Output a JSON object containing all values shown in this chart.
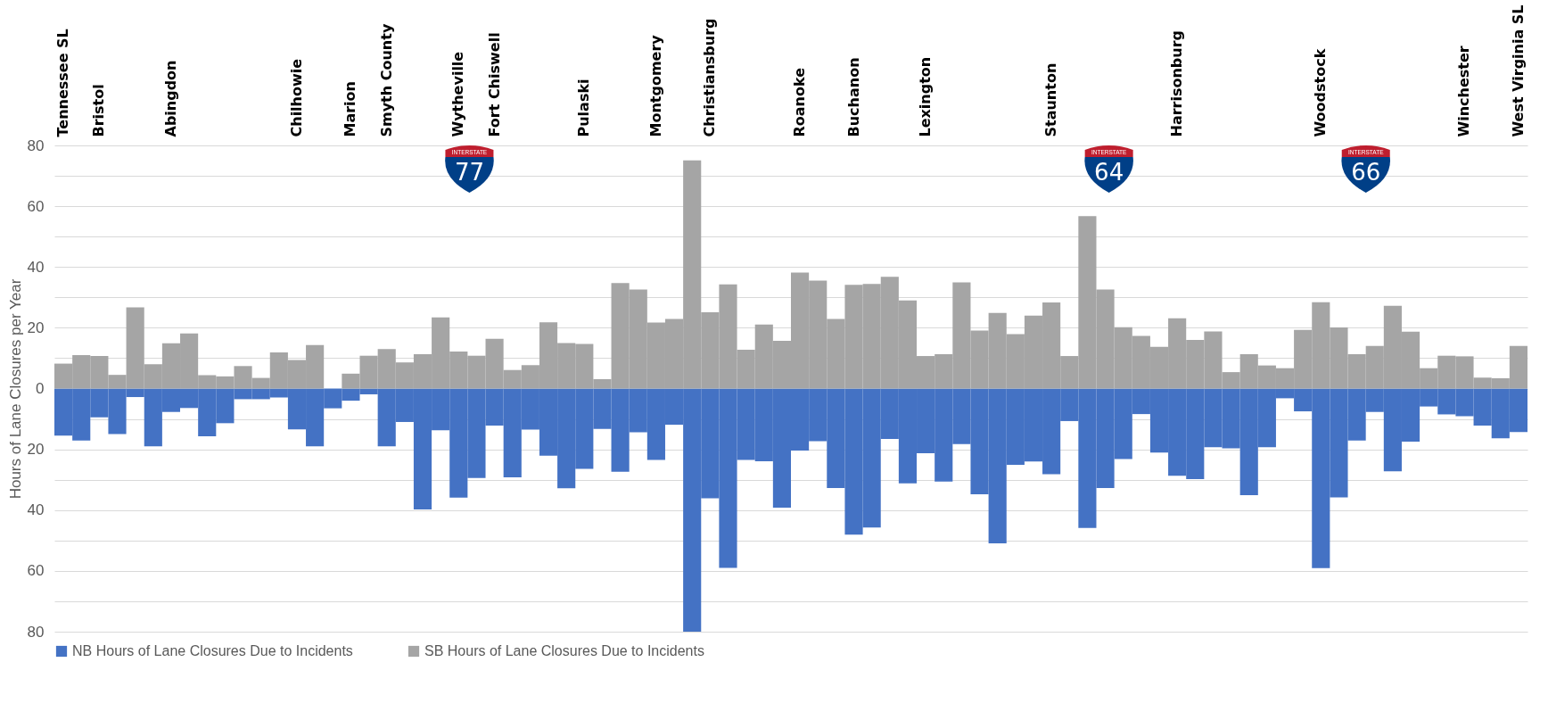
{
  "chart_data": {
    "type": "bar",
    "ylabel": "Hours of Lane Closures per Year",
    "categories": [
      "Tennessee SL",
      null,
      "Bristol",
      null,
      null,
      null,
      "Abingdon",
      null,
      null,
      null,
      null,
      null,
      null,
      "Chilhowie",
      null,
      null,
      "Marion",
      null,
      "Smyth County",
      null,
      null,
      null,
      "Wytheville",
      null,
      "Fort Chiswell",
      null,
      null,
      null,
      null,
      "Pulaski",
      null,
      null,
      null,
      "Montgomery",
      null,
      null,
      "Christiansburg",
      null,
      null,
      null,
      null,
      "Roanoke",
      null,
      null,
      "Buchanon",
      null,
      null,
      null,
      "Lexington",
      null,
      null,
      null,
      null,
      null,
      null,
      "Staunton",
      null,
      null,
      null,
      null,
      null,
      null,
      "Harrisonburg",
      null,
      null,
      null,
      null,
      null,
      null,
      null,
      "Woodstock",
      null,
      null,
      null,
      null,
      null,
      null,
      null,
      "Winchester",
      null,
      null,
      "West Virginia SL"
    ],
    "series": [
      {
        "name": "NB Hours of Lane Closures Due to Incidents",
        "color": "#4472c4",
        "values": [
          -15.5,
          -17.1,
          -9.5,
          -15.0,
          -2.8,
          -19.0,
          -7.7,
          -6.4,
          -15.7,
          -11.4,
          -3.5,
          -3.5,
          -2.9,
          -13.4,
          -19.0,
          -6.5,
          -4.0,
          -1.9,
          -19.0,
          -11.0,
          -39.8,
          -13.7,
          -35.9,
          -29.4,
          -12.2,
          -29.2,
          -13.5,
          -22.1,
          -32.8,
          -26.4,
          -13.3,
          -27.4,
          -14.4,
          -23.5,
          -11.9,
          -80,
          -36.1,
          -59.0,
          -23.5,
          -23.9,
          -39.2,
          -20.4,
          -17.3,
          -32.7,
          -48.1,
          -45.7,
          -16.6,
          -31.2,
          -21.3,
          -30.6,
          -18.3,
          -34.8,
          -50.9,
          -25.1,
          -24.0,
          -28.2,
          -10.7,
          -45.9,
          -32.7,
          -23.2,
          -8.4,
          -21.1,
          -28.7,
          -29.8,
          -19.3,
          -19.7,
          -35.1,
          -19.3,
          -3.2,
          -7.5,
          -59.1,
          -35.8,
          -17.1,
          -7.7,
          -27.2,
          -17.5,
          -5.9,
          -8.5,
          -9.1,
          -12.2,
          -16.4,
          -14.3
        ]
      },
      {
        "name": "SB Hours of Lane Closures Due to Incidents",
        "color": "#a5a5a5",
        "values": [
          8.2,
          11.0,
          10.7,
          4.5,
          26.7,
          8.0,
          14.9,
          18.1,
          4.4,
          4.0,
          7.4,
          3.5,
          11.9,
          9.4,
          14.3,
          0,
          4.9,
          10.8,
          13.0,
          8.6,
          11.3,
          23.4,
          12.2,
          10.8,
          16.4,
          6.1,
          7.7,
          21.8,
          15.0,
          14.7,
          3.1,
          34.7,
          32.6,
          21.7,
          22.9,
          75.1,
          25.1,
          34.3,
          12.8,
          21.1,
          15.7,
          38.2,
          35.5,
          22.9,
          34.1,
          34.4,
          36.8,
          29.0,
          10.7,
          11.3,
          34.9,
          19.1,
          24.9,
          17.9,
          24.0,
          28.3,
          10.7,
          56.7,
          32.6,
          20.2,
          17.3,
          13.7,
          23.1,
          16.0,
          18.8,
          5.4,
          11.3,
          7.6,
          6.7,
          19.3,
          28.4,
          20.1,
          11.3,
          14.0,
          27.2,
          18.7,
          6.7,
          10.8,
          10.6,
          3.6,
          3.4,
          14.0
        ]
      }
    ],
    "ylim": [
      -80,
      80
    ],
    "yticks": [
      {
        "value": -80,
        "label": "80"
      },
      {
        "value": -70,
        "label": null
      },
      {
        "value": -60,
        "label": "60"
      },
      {
        "value": -50,
        "label": null
      },
      {
        "value": -40,
        "label": "40"
      },
      {
        "value": -30,
        "label": null
      },
      {
        "value": -20,
        "label": "20"
      },
      {
        "value": -10,
        "label": null
      },
      0,
      {
        "value": 10,
        "label": null
      },
      20,
      {
        "value": 30,
        "label": null
      },
      40,
      {
        "value": 50,
        "label": null
      },
      60,
      {
        "value": 70,
        "label": null
      },
      80
    ],
    "grid": true,
    "stacked": true,
    "legend": "bottom",
    "annotations": [
      "INTERSTATE 77",
      "INTERSTATE 64",
      "INTERSTATE 66"
    ]
  }
}
